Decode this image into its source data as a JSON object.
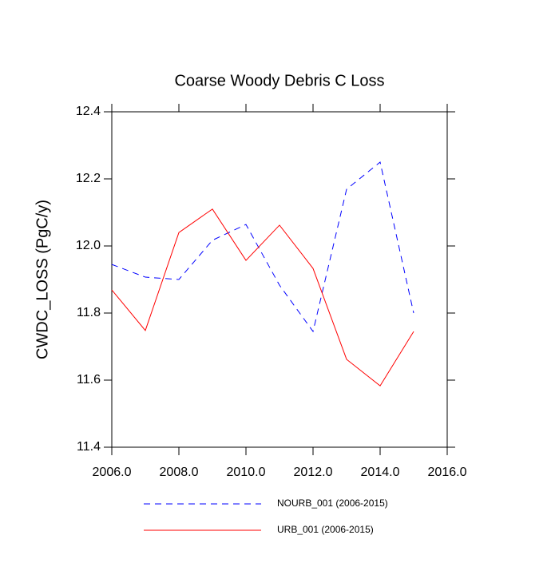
{
  "chart_data": {
    "type": "line",
    "title": "Coarse Woody Debris C Loss",
    "y_label": "CWDC_LOSS  (PgC/y)",
    "x": [
      2006,
      2007,
      2008,
      2009,
      2010,
      2011,
      2012,
      2013,
      2014,
      2015
    ],
    "series": [
      {
        "name": "NOURB_001 (2006-2015)",
        "color": "#0000ff",
        "style": "dashed",
        "values": [
          11.945,
          11.907,
          11.9,
          12.017,
          12.064,
          11.883,
          11.745,
          12.169,
          12.25,
          11.8
        ]
      },
      {
        "name": "URB_001 (2006-2015)",
        "color": "#ff0000",
        "style": "solid",
        "values": [
          11.869,
          11.748,
          12.04,
          12.11,
          11.957,
          12.062,
          11.933,
          11.662,
          11.583,
          11.745
        ]
      }
    ],
    "xlim": [
      2006,
      2016
    ],
    "xticks": [
      {
        "value": 2006,
        "label": "2006.0"
      },
      {
        "value": 2008,
        "label": "2008.0"
      },
      {
        "value": 2010,
        "label": "2010.0"
      },
      {
        "value": 2012,
        "label": "2012.0"
      },
      {
        "value": 2014,
        "label": "2014.0"
      },
      {
        "value": 2016,
        "label": "2016.0"
      }
    ],
    "ylim": [
      11.4,
      12.4
    ],
    "yticks": [
      11.4,
      11.6,
      11.8,
      {
        "value": 12,
        "label": "12.0"
      },
      12.2,
      12.4
    ]
  }
}
